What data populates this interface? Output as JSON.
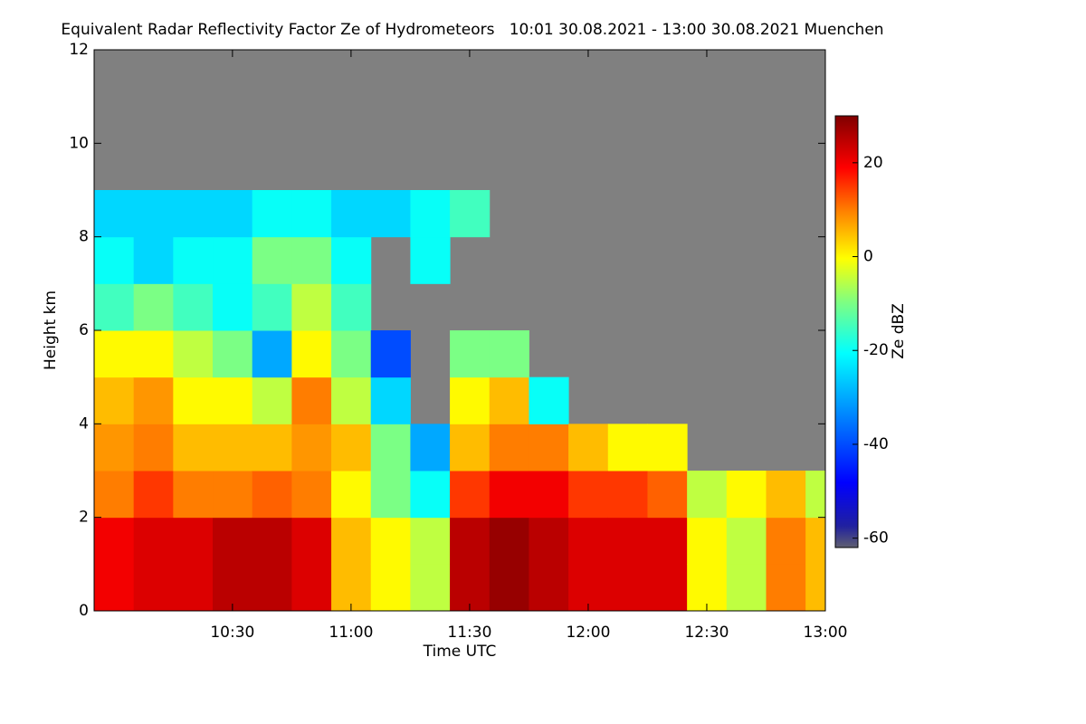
{
  "chart_data": {
    "type": "heatmap",
    "title": "Equivalent Radar Reflectivity Factor Ze of Hydrometeors   10:01 30.08.2021 - 13:00 30.08.2021 Muenchen",
    "x_label": "Time UTC",
    "y_label": "Height km",
    "colorbar_label": "Ze dBZ",
    "xlim": [
      595,
      780
    ],
    "ylim": [
      0,
      12
    ],
    "xticks": [
      {
        "value": 630,
        "label": "10:30"
      },
      {
        "value": 660,
        "label": "11:00"
      },
      {
        "value": 690,
        "label": "11:30"
      },
      {
        "value": 720,
        "label": "12:00"
      },
      {
        "value": 750,
        "label": "12:30"
      },
      {
        "value": 780,
        "label": "13:00"
      }
    ],
    "yticks": [
      0,
      2,
      4,
      6,
      8,
      10,
      12
    ],
    "zlim": [
      -62,
      30
    ],
    "zticks": [
      -60,
      -40,
      -20,
      0,
      20
    ],
    "xbins": [
      595,
      605,
      615,
      625,
      635,
      645,
      655,
      665,
      675,
      685,
      695,
      705,
      715,
      725,
      735,
      745,
      755,
      765,
      775,
      780
    ],
    "ybins": [
      0,
      1,
      2,
      3,
      4,
      5,
      6,
      7,
      8,
      9
    ],
    "z": [
      [
        20,
        20,
        10,
        8,
        5,
        0,
        -15,
        -20,
        -25
      ],
      [
        22,
        22,
        15,
        10,
        8,
        0,
        -10,
        -25,
        -25
      ],
      [
        22,
        22,
        10,
        5,
        0,
        -5,
        -15,
        -20,
        -25
      ],
      [
        25,
        25,
        10,
        5,
        0,
        -10,
        -20,
        -20,
        -25
      ],
      [
        25,
        25,
        12,
        5,
        -5,
        -30,
        -15,
        -10,
        -20
      ],
      [
        22,
        22,
        10,
        8,
        10,
        0,
        -5,
        -10,
        -20
      ],
      [
        5,
        5,
        0,
        5,
        -5,
        -10,
        -15,
        -20,
        -25
      ],
      [
        0,
        0,
        -10,
        -10,
        -25,
        -40,
        null,
        null,
        -25
      ],
      [
        -5,
        -5,
        -20,
        -30,
        null,
        null,
        null,
        -20,
        -20
      ],
      [
        25,
        25,
        15,
        5,
        0,
        -10,
        null,
        null,
        -15
      ],
      [
        28,
        28,
        20,
        10,
        5,
        -10,
        null,
        null,
        null
      ],
      [
        25,
        25,
        20,
        10,
        -20,
        null,
        null,
        null,
        null
      ],
      [
        22,
        22,
        15,
        5,
        null,
        null,
        null,
        null,
        null
      ],
      [
        22,
        22,
        15,
        0,
        null,
        null,
        null,
        null,
        null
      ],
      [
        22,
        22,
        12,
        0,
        null,
        null,
        null,
        null,
        null
      ],
      [
        0,
        0,
        -5,
        null,
        null,
        null,
        null,
        null,
        null
      ],
      [
        -5,
        -5,
        0,
        null,
        null,
        null,
        null,
        null,
        null
      ],
      [
        10,
        10,
        5,
        null,
        null,
        null,
        null,
        null,
        null
      ],
      [
        5,
        5,
        -5,
        null,
        null,
        null,
        null,
        null,
        null
      ]
    ]
  }
}
